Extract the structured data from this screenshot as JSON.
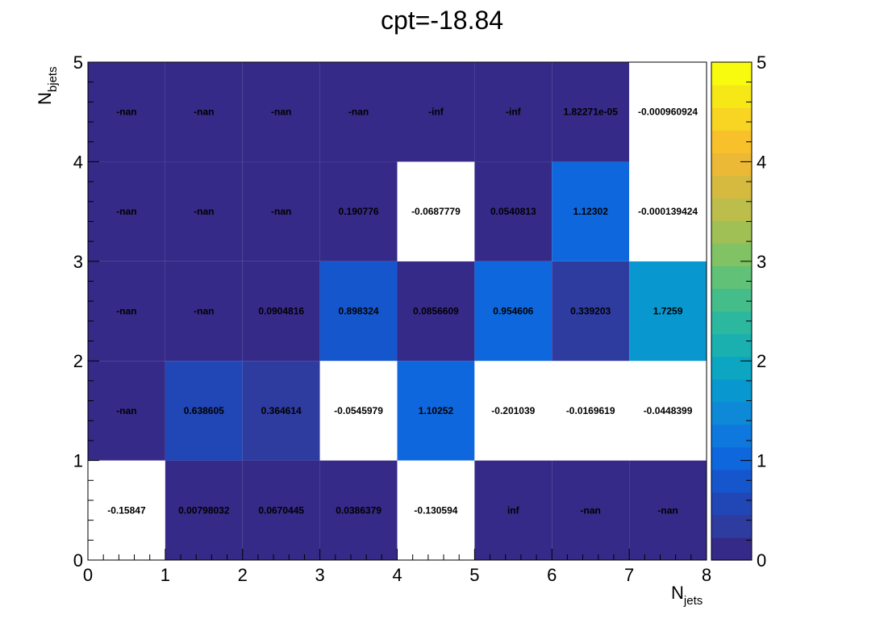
{
  "chart_data": {
    "type": "heatmap",
    "title": "cpt=-18.84",
    "xlabel": {
      "main": "N",
      "sub": "jets"
    },
    "ylabel": {
      "main": "N",
      "sub": "bjets"
    },
    "x_edges": [
      0,
      1,
      2,
      3,
      4,
      5,
      6,
      7,
      8
    ],
    "y_edges": [
      0,
      1,
      2,
      3,
      4,
      5
    ],
    "xlim": [
      0,
      8
    ],
    "ylim": [
      0,
      5
    ],
    "zlim": [
      0,
      5
    ],
    "x_ticks": [
      "0",
      "1",
      "2",
      "3",
      "4",
      "5",
      "6",
      "7",
      "8"
    ],
    "y_ticks": [
      "0",
      "1",
      "2",
      "3",
      "4",
      "5"
    ],
    "z_ticks": [
      "0",
      "1",
      "2",
      "3",
      "4",
      "5"
    ],
    "palette": [
      "#352a87",
      "#2e3b9f",
      "#2146b5",
      "#1556cc",
      "#0e67dc",
      "#0e78de",
      "#0d89d7",
      "#0898cf",
      "#0ca5c2",
      "#1ab0b0",
      "#2cb79f",
      "#44bd8a",
      "#60c177",
      "#80c264",
      "#a0c055",
      "#bdbd4b",
      "#d6ba3f",
      "#ebb935",
      "#f8c12b",
      "#f8d522",
      "#f6e817",
      "#f9fb0e"
    ],
    "rows": [
      {
        "y_bin": 0,
        "cells": [
          {
            "label": "-0.15847",
            "value": -0.15847
          },
          {
            "label": "0.00798032",
            "value": 0.00798032
          },
          {
            "label": "0.0670445",
            "value": 0.0670445
          },
          {
            "label": "0.0386379",
            "value": 0.0386379
          },
          {
            "label": "-0.130594",
            "value": -0.130594
          },
          {
            "label": "inf",
            "value": null
          },
          {
            "label": "-nan",
            "value": null
          },
          {
            "label": "-nan",
            "value": null
          }
        ]
      },
      {
        "y_bin": 1,
        "cells": [
          {
            "label": "-nan",
            "value": null
          },
          {
            "label": "0.638605",
            "value": 0.638605
          },
          {
            "label": "0.364614",
            "value": 0.364614
          },
          {
            "label": "-0.0545979",
            "value": -0.0545979
          },
          {
            "label": "1.10252",
            "value": 1.10252
          },
          {
            "label": "-0.201039",
            "value": -0.201039
          },
          {
            "label": "-0.0169619",
            "value": -0.0169619
          },
          {
            "label": "-0.0448399",
            "value": -0.0448399
          }
        ]
      },
      {
        "y_bin": 2,
        "cells": [
          {
            "label": "-nan",
            "value": null
          },
          {
            "label": "-nan",
            "value": null
          },
          {
            "label": "0.0904816",
            "value": 0.0904816
          },
          {
            "label": "0.898324",
            "value": 0.898324
          },
          {
            "label": "0.0856609",
            "value": 0.0856609
          },
          {
            "label": "0.954606",
            "value": 0.954606
          },
          {
            "label": "0.339203",
            "value": 0.339203
          },
          {
            "label": "1.7259",
            "value": 1.7259
          }
        ]
      },
      {
        "y_bin": 3,
        "cells": [
          {
            "label": "-nan",
            "value": null
          },
          {
            "label": "-nan",
            "value": null
          },
          {
            "label": "-nan",
            "value": null
          },
          {
            "label": "0.190776",
            "value": 0.190776
          },
          {
            "label": "-0.0687779",
            "value": -0.0687779
          },
          {
            "label": "0.0540813",
            "value": 0.0540813
          },
          {
            "label": "1.12302",
            "value": 1.12302
          },
          {
            "label": "-0.000139424",
            "value": -0.000139424
          }
        ]
      },
      {
        "y_bin": 4,
        "cells": [
          {
            "label": "-nan",
            "value": null
          },
          {
            "label": "-nan",
            "value": null
          },
          {
            "label": "-nan",
            "value": null
          },
          {
            "label": "-nan",
            "value": null
          },
          {
            "label": "-inf",
            "value": null
          },
          {
            "label": "-inf",
            "value": null
          },
          {
            "label": "1.82271e-05",
            "value": 1.82271e-05
          },
          {
            "label": "-0.000960924",
            "value": -0.000960924
          }
        ]
      }
    ]
  }
}
